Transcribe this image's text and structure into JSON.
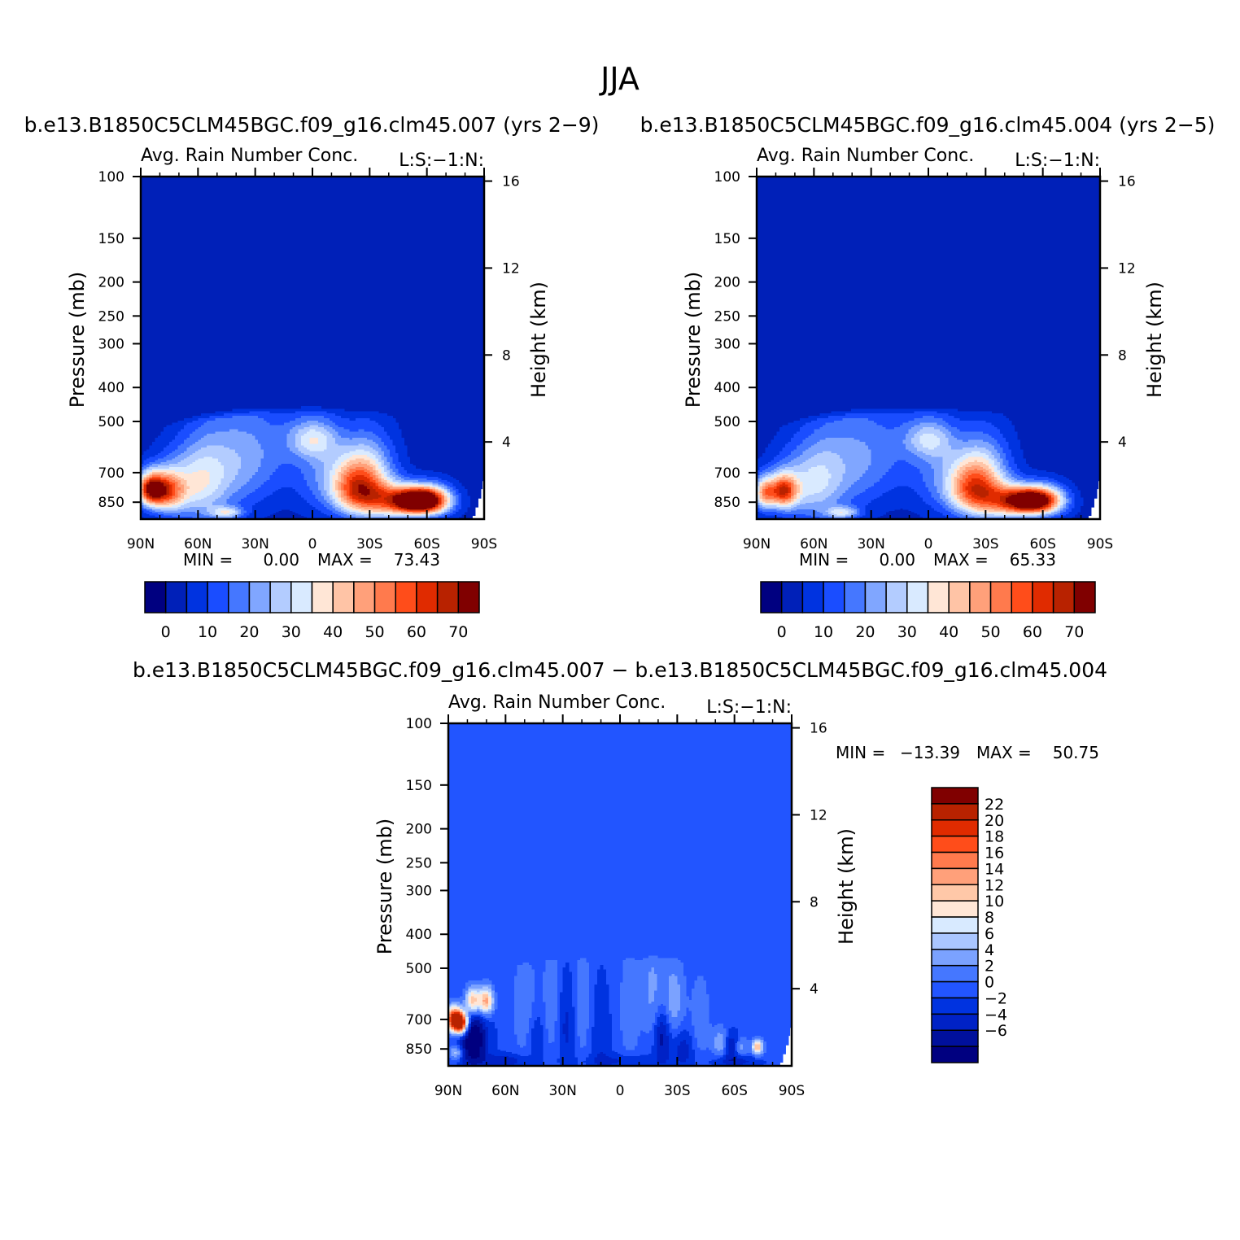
{
  "figure_title": "JJA",
  "colors": {
    "abs_levels": [
      "#000080",
      "#0020b8",
      "#0033e0",
      "#1a4dff",
      "#4577ff",
      "#80a6ff",
      "#b3ccff",
      "#d9eaff",
      "#ffe6d6",
      "#ffc4a6",
      "#ffa07a",
      "#ff7a4d",
      "#ff4d1a",
      "#e02b00",
      "#b82200",
      "#800000"
    ],
    "diff_levels": [
      "#000080",
      "#00109c",
      "#0022c6",
      "#0033e0",
      "#2255ff",
      "#4577ff",
      "#7ba2ff",
      "#aac6ff",
      "#d8eaff",
      "#ffe6d6",
      "#ffc8a8",
      "#ffa07a",
      "#ff7a4d",
      "#ff4d1a",
      "#e02b00",
      "#b82200",
      "#800000"
    ],
    "frame": "#000000",
    "background": "#ffffff"
  },
  "chart_data": [
    {
      "type": "heatmap",
      "panel": "top-left",
      "title": "b.e13.B1850C5CLM45BGC.f09_g16.clm45.007 (yrs 2−9)",
      "left_string": "Avg. Rain Number Conc.",
      "right_string": "L:S:−1:N:",
      "ylabel": "Pressure (mb)",
      "ylabel_right": "Height (km)",
      "x_ticks": [
        "90N",
        "60N",
        "30N",
        "0",
        "30S",
        "60S",
        "90S"
      ],
      "x_values": [
        90,
        60,
        30,
        0,
        -30,
        -60,
        -90
      ],
      "y_ticks": [
        "100",
        "150",
        "200",
        "250",
        "300",
        "400",
        "500",
        "700",
        "850"
      ],
      "y_values": [
        100,
        150,
        200,
        250,
        300,
        400,
        500,
        700,
        850
      ],
      "y_range": [
        100,
        950
      ],
      "y_right_ticks": [
        "16",
        "12",
        "8",
        "4"
      ],
      "y_right_values": [
        16,
        12,
        8,
        4
      ],
      "stats": {
        "min_label": "MIN =",
        "min_value": "0.00",
        "max_label": "MAX =",
        "max_value": "73.43"
      },
      "colorbar": {
        "orientation": "horizontal",
        "labels": [
          "0",
          "10",
          "20",
          "30",
          "40",
          "50",
          "60",
          "70"
        ],
        "levels": [
          0,
          5,
          10,
          15,
          20,
          25,
          30,
          35,
          40,
          45,
          50,
          55,
          60,
          65,
          70
        ]
      },
      "field": {
        "background_value": 2,
        "blobs": [
          {
            "lat": 85,
            "p": 780,
            "amp": 60,
            "slat": 5,
            "sp": 60
          },
          {
            "lat": 76,
            "p": 790,
            "amp": 40,
            "slat": 6,
            "sp": 70
          },
          {
            "lat": 65,
            "p": 760,
            "amp": 22,
            "slat": 12,
            "sp": 130
          },
          {
            "lat": 55,
            "p": 700,
            "amp": 14,
            "slat": 10,
            "sp": 170
          },
          {
            "lat": 37,
            "p": 640,
            "amp": 17,
            "slat": 12,
            "sp": 170
          },
          {
            "lat": 18,
            "p": 600,
            "amp": 8,
            "slat": 12,
            "sp": 150
          },
          {
            "lat": 0,
            "p": 560,
            "amp": 22,
            "slat": 9,
            "sp": 50
          },
          {
            "lat": -5,
            "p": 690,
            "amp": 14,
            "slat": 10,
            "sp": 150
          },
          {
            "lat": -22,
            "p": 760,
            "amp": 36,
            "slat": 9,
            "sp": 100
          },
          {
            "lat": -30,
            "p": 720,
            "amp": 26,
            "slat": 10,
            "sp": 140
          },
          {
            "lat": -40,
            "p": 820,
            "amp": 30,
            "slat": 14,
            "sp": 60
          },
          {
            "lat": -55,
            "p": 840,
            "amp": 68,
            "slat": 9,
            "sp": 45
          },
          {
            "lat": -63,
            "p": 835,
            "amp": 30,
            "slat": 8,
            "sp": 60
          },
          {
            "lat": -47,
            "p": 900,
            "amp": 16,
            "slat": 14,
            "sp": 40
          },
          {
            "lat": 45,
            "p": 910,
            "amp": 24,
            "slat": 6,
            "sp": 25
          }
        ]
      }
    },
    {
      "type": "heatmap",
      "panel": "top-right",
      "title": "b.e13.B1850C5CLM45BGC.f09_g16.clm45.004 (yrs 2−5)",
      "left_string": "Avg. Rain Number Conc.",
      "right_string": "L:S:−1:N:",
      "ylabel": "Pressure (mb)",
      "ylabel_right": "Height (km)",
      "x_ticks": [
        "90N",
        "60N",
        "30N",
        "0",
        "30S",
        "60S",
        "90S"
      ],
      "x_values": [
        90,
        60,
        30,
        0,
        -30,
        -60,
        -90
      ],
      "y_ticks": [
        "100",
        "150",
        "200",
        "250",
        "300",
        "400",
        "500",
        "700",
        "850"
      ],
      "y_values": [
        100,
        150,
        200,
        250,
        300,
        400,
        500,
        700,
        850
      ],
      "y_range": [
        100,
        950
      ],
      "y_right_ticks": [
        "16",
        "12",
        "8",
        "4"
      ],
      "y_right_values": [
        16,
        12,
        8,
        4
      ],
      "stats": {
        "min_label": "MIN =",
        "min_value": "0.00",
        "max_label": "MAX =",
        "max_value": "65.33"
      },
      "colorbar": {
        "orientation": "horizontal",
        "labels": [
          "0",
          "10",
          "20",
          "30",
          "40",
          "50",
          "60",
          "70"
        ],
        "levels": [
          0,
          5,
          10,
          15,
          20,
          25,
          30,
          35,
          40,
          45,
          50,
          55,
          60,
          65,
          70
        ]
      },
      "field": {
        "background_value": 2,
        "blobs": [
          {
            "lat": 86,
            "p": 800,
            "amp": 40,
            "slat": 4,
            "sp": 60
          },
          {
            "lat": 76,
            "p": 790,
            "amp": 50,
            "slat": 5,
            "sp": 60
          },
          {
            "lat": 66,
            "p": 760,
            "amp": 20,
            "slat": 12,
            "sp": 130
          },
          {
            "lat": 55,
            "p": 700,
            "amp": 13,
            "slat": 10,
            "sp": 170
          },
          {
            "lat": 37,
            "p": 640,
            "amp": 15,
            "slat": 12,
            "sp": 170
          },
          {
            "lat": 18,
            "p": 600,
            "amp": 8,
            "slat": 12,
            "sp": 150
          },
          {
            "lat": 0,
            "p": 560,
            "amp": 20,
            "slat": 9,
            "sp": 50
          },
          {
            "lat": -5,
            "p": 690,
            "amp": 13,
            "slat": 10,
            "sp": 150
          },
          {
            "lat": -22,
            "p": 760,
            "amp": 34,
            "slat": 9,
            "sp": 100
          },
          {
            "lat": -30,
            "p": 720,
            "amp": 24,
            "slat": 10,
            "sp": 140
          },
          {
            "lat": -40,
            "p": 820,
            "amp": 28,
            "slat": 14,
            "sp": 60
          },
          {
            "lat": -53,
            "p": 840,
            "amp": 60,
            "slat": 9,
            "sp": 45
          },
          {
            "lat": -62,
            "p": 835,
            "amp": 26,
            "slat": 8,
            "sp": 60
          },
          {
            "lat": -45,
            "p": 900,
            "amp": 16,
            "slat": 14,
            "sp": 40
          },
          {
            "lat": 45,
            "p": 910,
            "amp": 24,
            "slat": 6,
            "sp": 25
          }
        ]
      }
    },
    {
      "type": "heatmap",
      "panel": "bottom-difference",
      "title": "b.e13.B1850C5CLM45BGC.f09_g16.clm45.007 − b.e13.B1850C5CLM45BGC.f09_g16.clm45.004",
      "left_string": "Avg. Rain Number Conc.",
      "right_string": "L:S:−1:N:",
      "ylabel": "Pressure (mb)",
      "ylabel_right": "Height (km)",
      "x_ticks": [
        "90N",
        "60N",
        "30N",
        "0",
        "30S",
        "60S",
        "90S"
      ],
      "x_values": [
        90,
        60,
        30,
        0,
        -30,
        -60,
        -90
      ],
      "y_ticks": [
        "100",
        "150",
        "200",
        "250",
        "300",
        "400",
        "500",
        "700",
        "850"
      ],
      "y_values": [
        100,
        150,
        200,
        250,
        300,
        400,
        500,
        700,
        850
      ],
      "y_range": [
        100,
        950
      ],
      "y_right_ticks": [
        "16",
        "12",
        "8",
        "4"
      ],
      "y_right_values": [
        16,
        12,
        8,
        4
      ],
      "stats": {
        "min_label": "MIN =",
        "min_value": "−13.39",
        "max_label": "MAX =",
        "max_value": "50.75"
      },
      "colorbar": {
        "orientation": "vertical",
        "labels": [
          "22",
          "20",
          "18",
          "16",
          "14",
          "12",
          "10",
          "8",
          "6",
          "4",
          "2",
          "0",
          "−2",
          "−4",
          "−6"
        ],
        "levels": [
          -6,
          -4,
          -2,
          0,
          2,
          4,
          6,
          8,
          10,
          12,
          14,
          16,
          18,
          20,
          22
        ]
      },
      "field": {
        "background_value": 0.5,
        "blobs": [
          {
            "lat": 87,
            "p": 700,
            "amp": 24,
            "slat": 3,
            "sp": 40
          },
          {
            "lat": 83,
            "p": 720,
            "amp": 22,
            "slat": 2.5,
            "sp": 35
          },
          {
            "lat": 77,
            "p": 620,
            "amp": 14,
            "slat": 3,
            "sp": 40
          },
          {
            "lat": 70,
            "p": 620,
            "amp": 14,
            "slat": 2.5,
            "sp": 40
          },
          {
            "lat": 77,
            "p": 800,
            "amp": -10,
            "slat": 5,
            "sp": 100
          },
          {
            "lat": 86,
            "p": 870,
            "amp": 7,
            "slat": 2.5,
            "sp": 30
          },
          {
            "lat": 50,
            "p": 650,
            "amp": 3,
            "slat": 5,
            "sp": 180
          },
          {
            "lat": 44,
            "p": 780,
            "amp": -3,
            "slat": 3,
            "sp": 90
          },
          {
            "lat": 36,
            "p": 600,
            "amp": 3,
            "slat": 3,
            "sp": 200
          },
          {
            "lat": 28,
            "p": 740,
            "amp": -3,
            "slat": 3,
            "sp": 150
          },
          {
            "lat": 20,
            "p": 620,
            "amp": 3,
            "slat": 3,
            "sp": 200
          },
          {
            "lat": 10,
            "p": 760,
            "amp": -2.5,
            "slat": 3,
            "sp": 150
          },
          {
            "lat": -5,
            "p": 650,
            "amp": 3,
            "slat": 4,
            "sp": 200
          },
          {
            "lat": -17,
            "p": 580,
            "amp": 4,
            "slat": 4,
            "sp": 150
          },
          {
            "lat": -22,
            "p": 780,
            "amp": -6,
            "slat": 3,
            "sp": 100
          },
          {
            "lat": -28,
            "p": 620,
            "amp": 5,
            "slat": 4,
            "sp": 120
          },
          {
            "lat": -33,
            "p": 850,
            "amp": -4,
            "slat": 4,
            "sp": 80
          },
          {
            "lat": -42,
            "p": 700,
            "amp": 3,
            "slat": 4,
            "sp": 150
          },
          {
            "lat": -53,
            "p": 820,
            "amp": 6,
            "slat": 3,
            "sp": 60
          },
          {
            "lat": -58,
            "p": 830,
            "amp": -6,
            "slat": 3,
            "sp": 50
          },
          {
            "lat": -63,
            "p": 840,
            "amp": 5,
            "slat": 3,
            "sp": 40
          },
          {
            "lat": -72,
            "p": 840,
            "amp": 14,
            "slat": 2,
            "sp": 30
          },
          {
            "lat": -60,
            "p": 920,
            "amp": -4,
            "slat": 8,
            "sp": 30
          },
          {
            "lat": 60,
            "p": 920,
            "amp": -4,
            "slat": 10,
            "sp": 30
          },
          {
            "lat": 0,
            "p": 920,
            "amp": -3,
            "slat": 15,
            "sp": 30
          }
        ]
      }
    }
  ]
}
